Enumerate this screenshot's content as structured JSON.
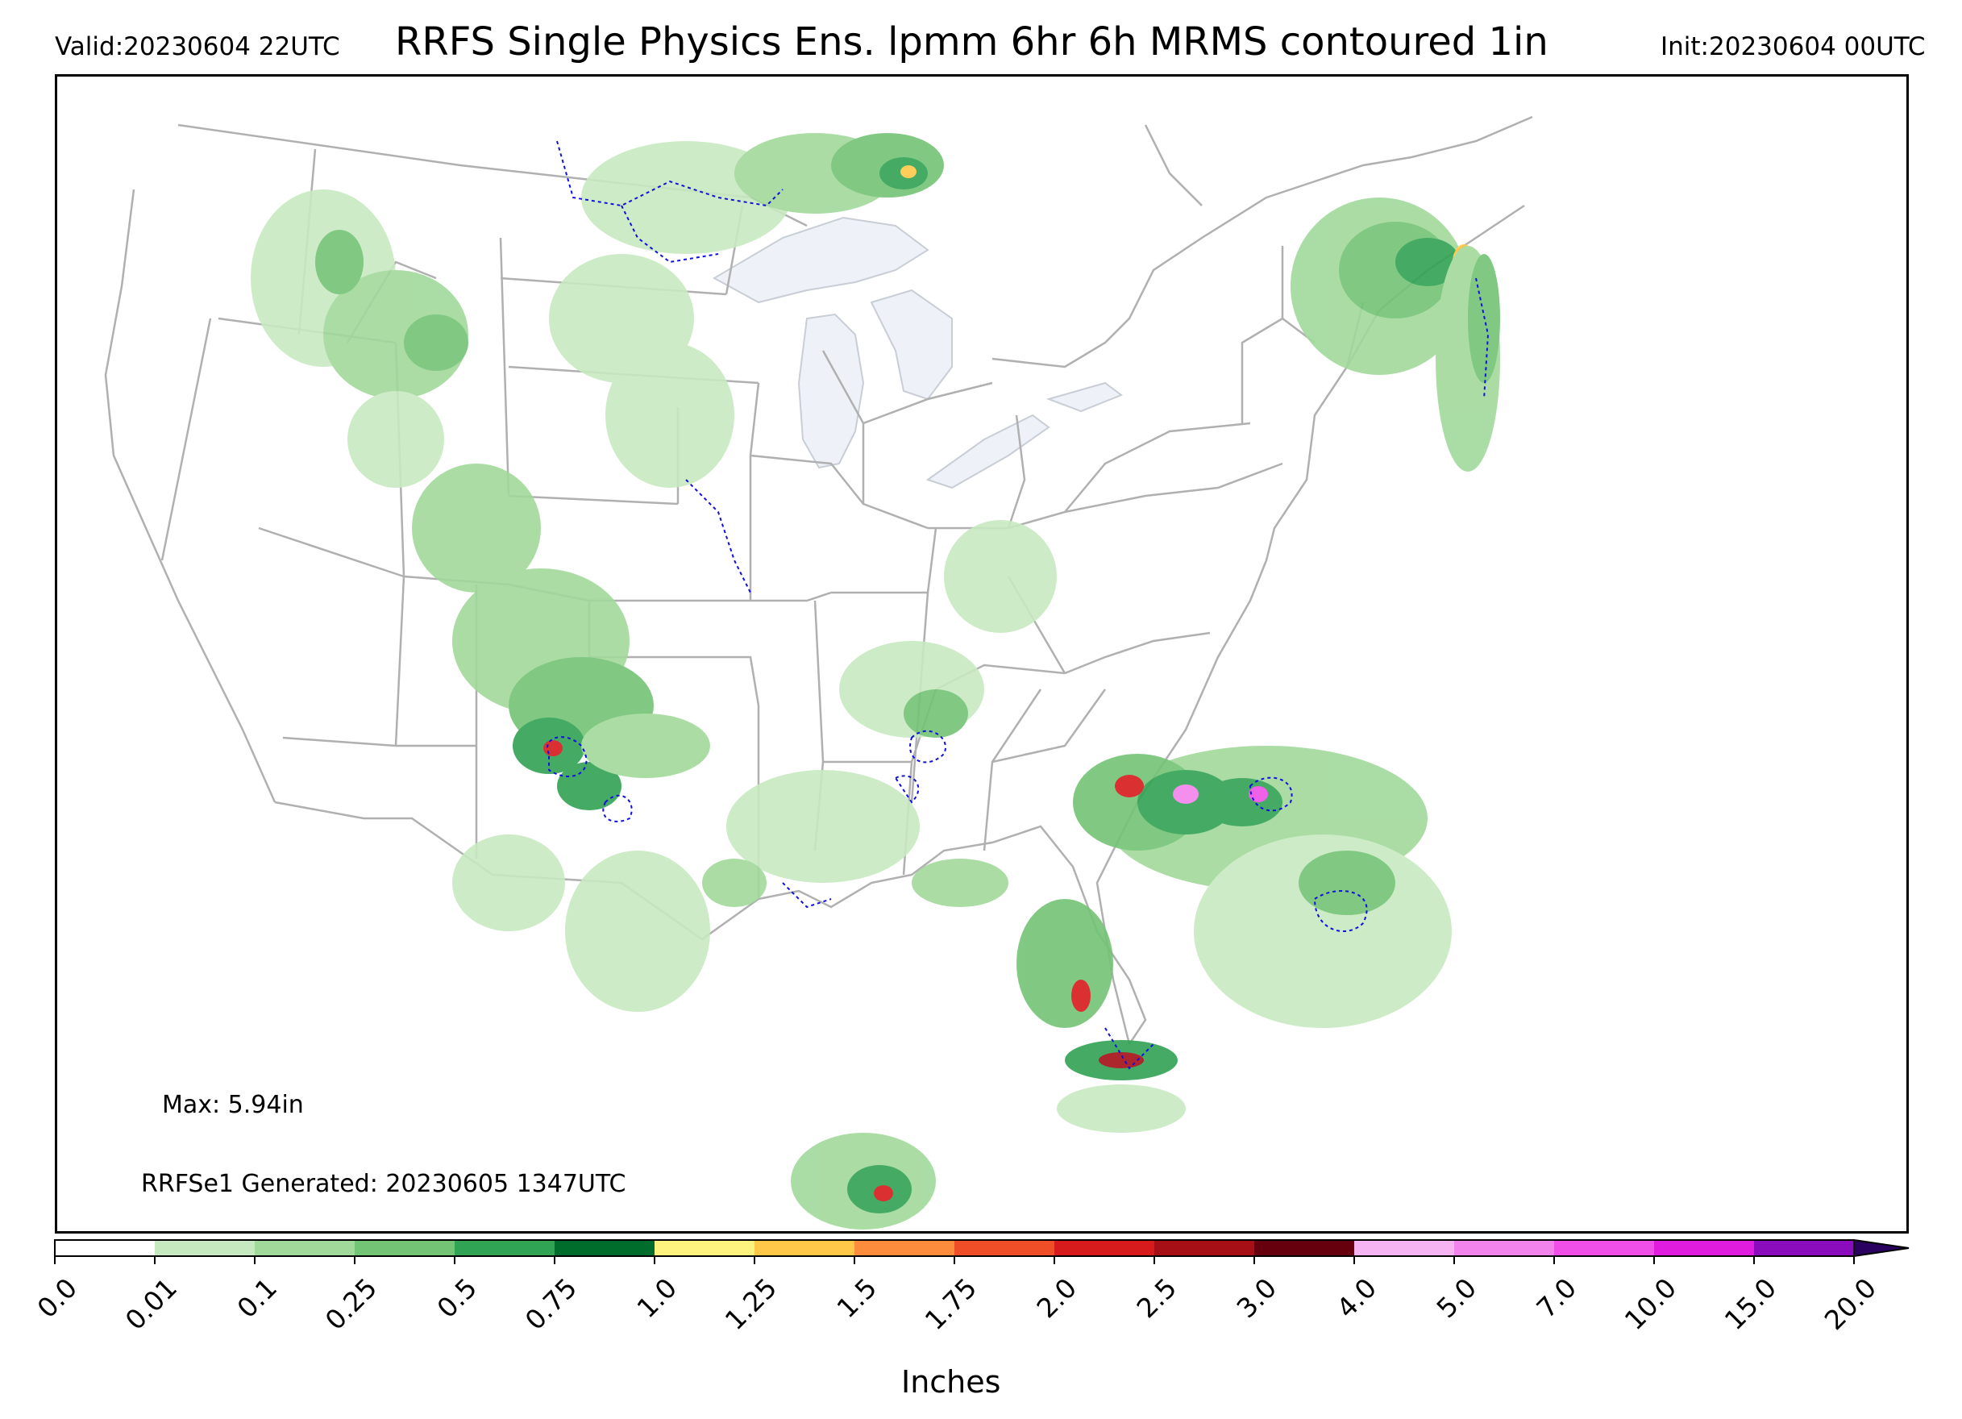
{
  "header": {
    "valid": "Valid:20230604 22UTC",
    "title": "RRFS Single Physics Ens. lpmm 6hr 6h MRMS contoured 1in",
    "init": "Init:20230604 00UTC"
  },
  "annotations": {
    "max": "Max: 5.94in",
    "generated": "RRFSe1 Generated: 20230605 1347UTC"
  },
  "colorbar": {
    "label": "Inches",
    "ticks": [
      "0.0",
      "0.01",
      "0.1",
      "0.25",
      "0.5",
      "0.75",
      "1.0",
      "1.25",
      "1.5",
      "1.75",
      "2.0",
      "2.5",
      "3.0",
      "4.0",
      "5.0",
      "7.0",
      "10.0",
      "15.0",
      "20.0"
    ],
    "colors": [
      "#ffffff",
      "#c7e9c0",
      "#a1d99b",
      "#74c476",
      "#31a354",
      "#006d2c",
      "#fff380",
      "#ffc848",
      "#fd8d3c",
      "#f04e27",
      "#d71a1c",
      "#a50f15",
      "#67000d",
      "#f7b4f2",
      "#f383ec",
      "#ef4fe6",
      "#e01cde",
      "#8a0cbd"
    ],
    "extend_color": "#2a0060"
  },
  "map": {
    "water_color": "#eef2f8",
    "border_color": "#b0b0b0",
    "contour_color": "#1010e0",
    "precip_regions": [
      {
        "name": "northern-plains",
        "intensity": "light-moderate"
      },
      {
        "name": "northern-rockies",
        "intensity": "light-moderate"
      },
      {
        "name": "southern-rockies-plains",
        "intensity": "moderate-heavy"
      },
      {
        "name": "southeast-gulf-coast",
        "intensity": "moderate"
      },
      {
        "name": "florida-atlantic",
        "intensity": "heavy"
      },
      {
        "name": "new-england-offshore",
        "intensity": "moderate-heavy"
      },
      {
        "name": "northern-mexico",
        "intensity": "moderate-heavy"
      }
    ]
  }
}
